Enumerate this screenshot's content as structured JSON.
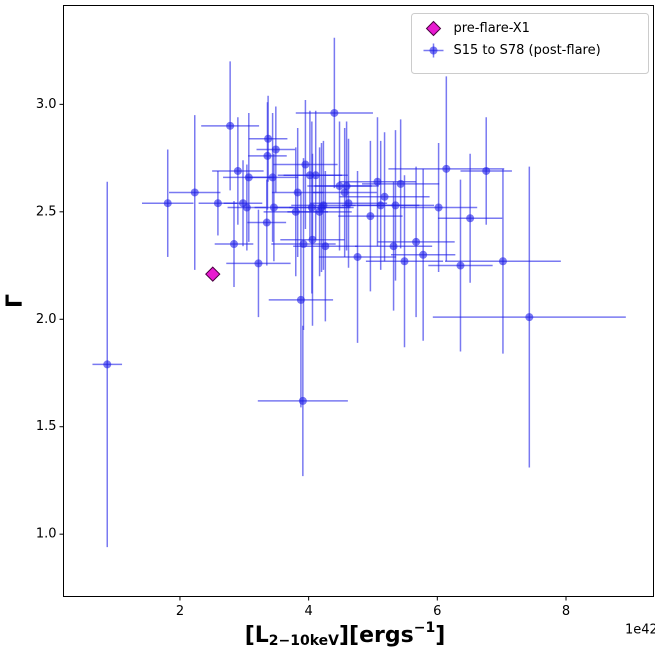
{
  "chart_data": {
    "type": "errorbar-scatter",
    "xlabel": [
      "[L",
      "2−10keV",
      "][ergs",
      "−1",
      "]"
    ],
    "ylabel": "Γ",
    "offset_text": "1e42",
    "xlim": [
      0.19,
      9.36
    ],
    "ylim": [
      0.71,
      3.46
    ],
    "xticks": [
      2,
      4,
      6,
      8
    ],
    "yticks": [
      {
        "value": 1.0,
        "label": "1.0"
      },
      1.5,
      {
        "value": 2.0,
        "label": "2.0"
      },
      2.5,
      {
        "value": 3.0,
        "label": "3.0"
      }
    ],
    "legend": "upper right",
    "series": [
      {
        "name": "pre-flare-X1",
        "color": "#e81ad0",
        "edgecolor": "#4a0040",
        "marker": "diamond",
        "x": [
          2.51
        ],
        "values": [
          2.21
        ]
      },
      {
        "name": "S15 to S78 (post-flare)",
        "color": "#1f1fe8",
        "marker": "circle",
        "x": [
          0.87,
          1.81,
          2.23,
          2.59,
          2.78,
          2.84,
          2.9,
          2.98,
          3.07,
          3.04,
          3.22,
          3.35,
          3.36,
          3.37,
          3.49,
          3.44,
          3.46,
          3.8,
          3.83,
          3.88,
          3.91,
          3.92,
          3.95,
          4.02,
          4.05,
          4.06,
          4.11,
          4.17,
          4.2,
          4.23,
          4.26,
          4.4,
          4.48,
          4.56,
          4.59,
          4.62,
          4.76,
          4.96,
          5.07,
          5.12,
          5.18,
          5.32,
          5.35,
          5.43,
          5.49,
          5.67,
          5.78,
          6.02,
          6.14,
          6.36,
          6.51,
          6.76,
          7.02,
          7.43
        ],
        "values": [
          1.79,
          2.54,
          2.59,
          2.54,
          2.9,
          2.35,
          2.69,
          2.54,
          2.66,
          2.52,
          2.26,
          2.45,
          2.76,
          2.84,
          2.79,
          2.66,
          2.52,
          2.5,
          2.59,
          2.09,
          1.62,
          2.35,
          2.72,
          2.67,
          2.52,
          2.37,
          2.67,
          2.5,
          2.52,
          2.53,
          2.34,
          2.96,
          2.62,
          2.59,
          2.62,
          2.54,
          2.29,
          2.48,
          2.64,
          2.53,
          2.57,
          2.34,
          2.53,
          2.63,
          2.27,
          2.36,
          2.3,
          2.52,
          2.7,
          2.25,
          2.47,
          2.69,
          2.27,
          2.01
        ],
        "xerr": [
          0.23,
          0.4,
          0.4,
          0.3,
          0.45,
          0.3,
          0.4,
          0.3,
          0.4,
          0.3,
          0.5,
          0.3,
          0.3,
          0.3,
          0.3,
          0.4,
          0.3,
          0.5,
          0.4,
          0.5,
          0.7,
          0.5,
          0.5,
          0.5,
          0.6,
          0.5,
          0.5,
          0.5,
          0.5,
          0.5,
          0.5,
          0.6,
          0.5,
          0.5,
          0.5,
          0.6,
          0.6,
          0.5,
          0.6,
          0.6,
          0.7,
          0.6,
          0.6,
          0.6,
          0.6,
          0.6,
          0.5,
          0.6,
          0.9,
          0.5,
          0.5,
          0.4,
          0.9,
          1.5
        ],
        "yerr": [
          0.85,
          0.25,
          0.36,
          0.15,
          0.3,
          0.2,
          0.25,
          0.2,
          0.3,
          0.2,
          0.25,
          0.2,
          0.25,
          0.2,
          0.2,
          0.3,
          0.25,
          0.3,
          0.3,
          0.5,
          0.35,
          0.4,
          0.3,
          0.3,
          0.4,
          0.4,
          0.3,
          0.3,
          0.3,
          0.3,
          0.35,
          0.35,
          0.3,
          0.3,
          0.3,
          0.3,
          0.4,
          0.35,
          0.3,
          0.3,
          0.3,
          0.3,
          0.35,
          0.3,
          0.4,
          0.35,
          0.4,
          0.3,
          0.43,
          0.4,
          0.3,
          0.25,
          0.43,
          0.7
        ]
      }
    ]
  }
}
